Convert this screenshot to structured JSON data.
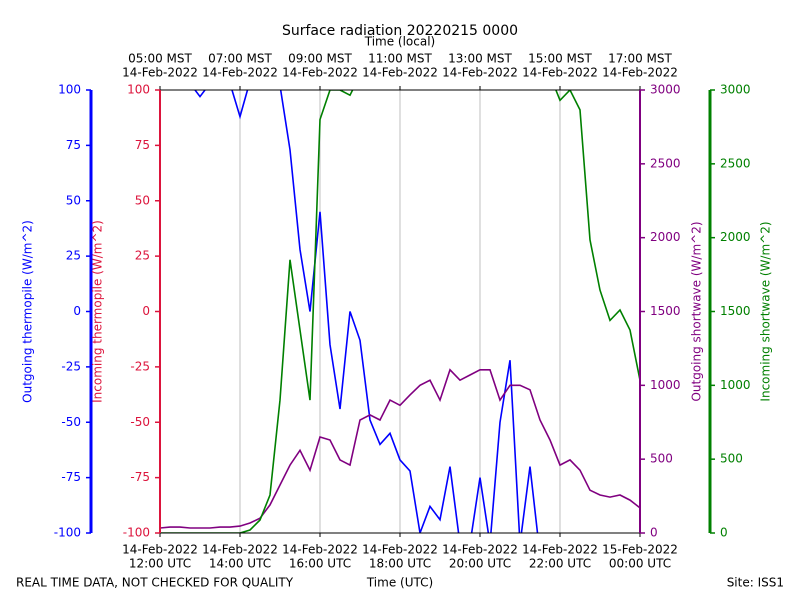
{
  "chart_data": {
    "type": "line",
    "title": "Surface radiation 20220215 0000",
    "xlabel": "Time (UTC)",
    "xlabel_top": "Time (local)",
    "footer_left": "REAL TIME DATA, NOT CHECKED FOR QUALITY",
    "footer_right": "Site: ISS1",
    "grid": true,
    "xlim": [
      "2022-02-14T12:00",
      "2022-02-15T00:00"
    ],
    "xticks": [
      {
        "value": "2022-02-14T12:00",
        "label": [
          "14-Feb-2022",
          "12:00 UTC"
        ]
      },
      {
        "value": "2022-02-14T14:00",
        "label": [
          "14-Feb-2022",
          "14:00 UTC"
        ]
      },
      {
        "value": "2022-02-14T16:00",
        "label": [
          "14-Feb-2022",
          "16:00 UTC"
        ]
      },
      {
        "value": "2022-02-14T18:00",
        "label": [
          "14-Feb-2022",
          "18:00 UTC"
        ]
      },
      {
        "value": "2022-02-14T20:00",
        "label": [
          "14-Feb-2022",
          "20:00 UTC"
        ]
      },
      {
        "value": "2022-02-14T22:00",
        "label": [
          "14-Feb-2022",
          "22:00 UTC"
        ]
      },
      {
        "value": "2022-02-15T00:00",
        "label": [
          "15-Feb-2022",
          "00:00 UTC"
        ]
      }
    ],
    "xticks_top": [
      {
        "value": "2022-02-14T12:00",
        "label": [
          "05:00 MST",
          "14-Feb-2022"
        ]
      },
      {
        "value": "2022-02-14T14:00",
        "label": [
          "07:00 MST",
          "14-Feb-2022"
        ]
      },
      {
        "value": "2022-02-14T16:00",
        "label": [
          "09:00 MST",
          "14-Feb-2022"
        ]
      },
      {
        "value": "2022-02-14T18:00",
        "label": [
          "11:00 MST",
          "14-Feb-2022"
        ]
      },
      {
        "value": "2022-02-14T20:00",
        "label": [
          "13:00 MST",
          "14-Feb-2022"
        ]
      },
      {
        "value": "2022-02-14T22:00",
        "label": [
          "15:00 MST",
          "14-Feb-2022"
        ]
      },
      {
        "value": "2022-02-15T00:00",
        "label": [
          "17:00 MST",
          "14-Feb-2022"
        ]
      }
    ],
    "x": [
      "2022-02-14T12:00",
      "2022-02-14T12:15",
      "2022-02-14T12:30",
      "2022-02-14T12:45",
      "2022-02-14T13:00",
      "2022-02-14T13:15",
      "2022-02-14T13:30",
      "2022-02-14T13:45",
      "2022-02-14T14:00",
      "2022-02-14T14:15",
      "2022-02-14T14:30",
      "2022-02-14T14:45",
      "2022-02-14T15:00",
      "2022-02-14T15:15",
      "2022-02-14T15:30",
      "2022-02-14T15:45",
      "2022-02-14T16:00",
      "2022-02-14T16:15",
      "2022-02-14T16:30",
      "2022-02-14T16:45",
      "2022-02-14T17:00",
      "2022-02-14T17:15",
      "2022-02-14T17:30",
      "2022-02-14T17:45",
      "2022-02-14T18:00",
      "2022-02-14T18:15",
      "2022-02-14T18:30",
      "2022-02-14T18:45",
      "2022-02-14T19:00",
      "2022-02-14T19:15",
      "2022-02-14T19:30",
      "2022-02-14T19:45",
      "2022-02-14T20:00",
      "2022-02-14T20:15",
      "2022-02-14T20:30",
      "2022-02-14T20:45",
      "2022-02-14T21:00",
      "2022-02-14T21:15",
      "2022-02-14T21:30",
      "2022-02-14T21:45",
      "2022-02-14T22:00",
      "2022-02-14T22:15",
      "2022-02-14T22:30",
      "2022-02-14T22:45",
      "2022-02-14T23:00",
      "2022-02-14T23:15",
      "2022-02-14T23:30",
      "2022-02-14T23:45",
      "2022-02-15T00:00"
    ],
    "axes": [
      {
        "label": "Outgoing thermopile (W/m^2)",
        "color": "#0000ff",
        "side": "left",
        "ylim": [
          -100,
          100
        ],
        "yticks": [
          -100,
          -75,
          -50,
          -25,
          0,
          25,
          50,
          75,
          100
        ],
        "values": [
          105,
          105,
          104,
          103,
          97,
          103,
          104,
          103,
          88,
          104,
          104,
          104,
          102,
          73,
          28,
          0,
          45,
          -15,
          -44,
          0,
          -13,
          -49,
          -60,
          -55,
          -67,
          -72,
          -100,
          -88,
          -94,
          -70,
          -105,
          -105,
          -75,
          -105,
          -50,
          -22,
          -105,
          -70,
          -110,
          -110,
          -110,
          -110,
          -110,
          -110,
          -110,
          -110,
          -110,
          -110,
          -110
        ]
      },
      {
        "label": "Incoming thermopile (W/m^2)",
        "color": "#dc143c",
        "side": "left",
        "ylim": [
          -100,
          100
        ],
        "yticks": [
          -100,
          -75,
          -50,
          -25,
          0,
          25,
          50,
          75,
          100
        ]
      },
      {
        "label": "Outgoing shortwave (W/m^2)",
        "color": "#800080",
        "side": "right",
        "ylim": [
          0,
          3000
        ],
        "yticks": [
          0,
          500,
          1000,
          1500,
          2000,
          2500,
          3000
        ],
        "values": [
          34,
          40,
          40,
          34,
          34,
          34,
          40,
          40,
          47,
          68,
          100,
          190,
          325,
          460,
          560,
          425,
          650,
          630,
          495,
          460,
          765,
          800,
          765,
          900,
          865,
          935,
          1000,
          1035,
          900,
          1105,
          1035,
          1070,
          1105,
          1105,
          900,
          1000,
          1000,
          970,
          765,
          630,
          460,
          495,
          425,
          290,
          257,
          243,
          257,
          223,
          170
        ]
      },
      {
        "label": "Incoming shortwave (W/m^2)",
        "color": "#008000",
        "side": "right",
        "ylim": [
          0,
          3000
        ],
        "yticks": [
          0,
          500,
          1000,
          1500,
          2000,
          2500,
          3000
        ],
        "values": [
          0,
          0,
          0,
          0,
          0,
          0,
          0,
          0,
          0,
          20,
          88,
          257,
          900,
          1850,
          1375,
          900,
          2800,
          3000,
          3000,
          2965,
          3100,
          3100,
          3100,
          3100,
          3100,
          3100,
          3100,
          3100,
          3100,
          3100,
          3100,
          3100,
          3100,
          3100,
          3100,
          3100,
          3100,
          3100,
          3100,
          3100,
          2930,
          3000,
          2865,
          1985,
          1645,
          1440,
          1510,
          1375,
          1035
        ]
      }
    ]
  }
}
